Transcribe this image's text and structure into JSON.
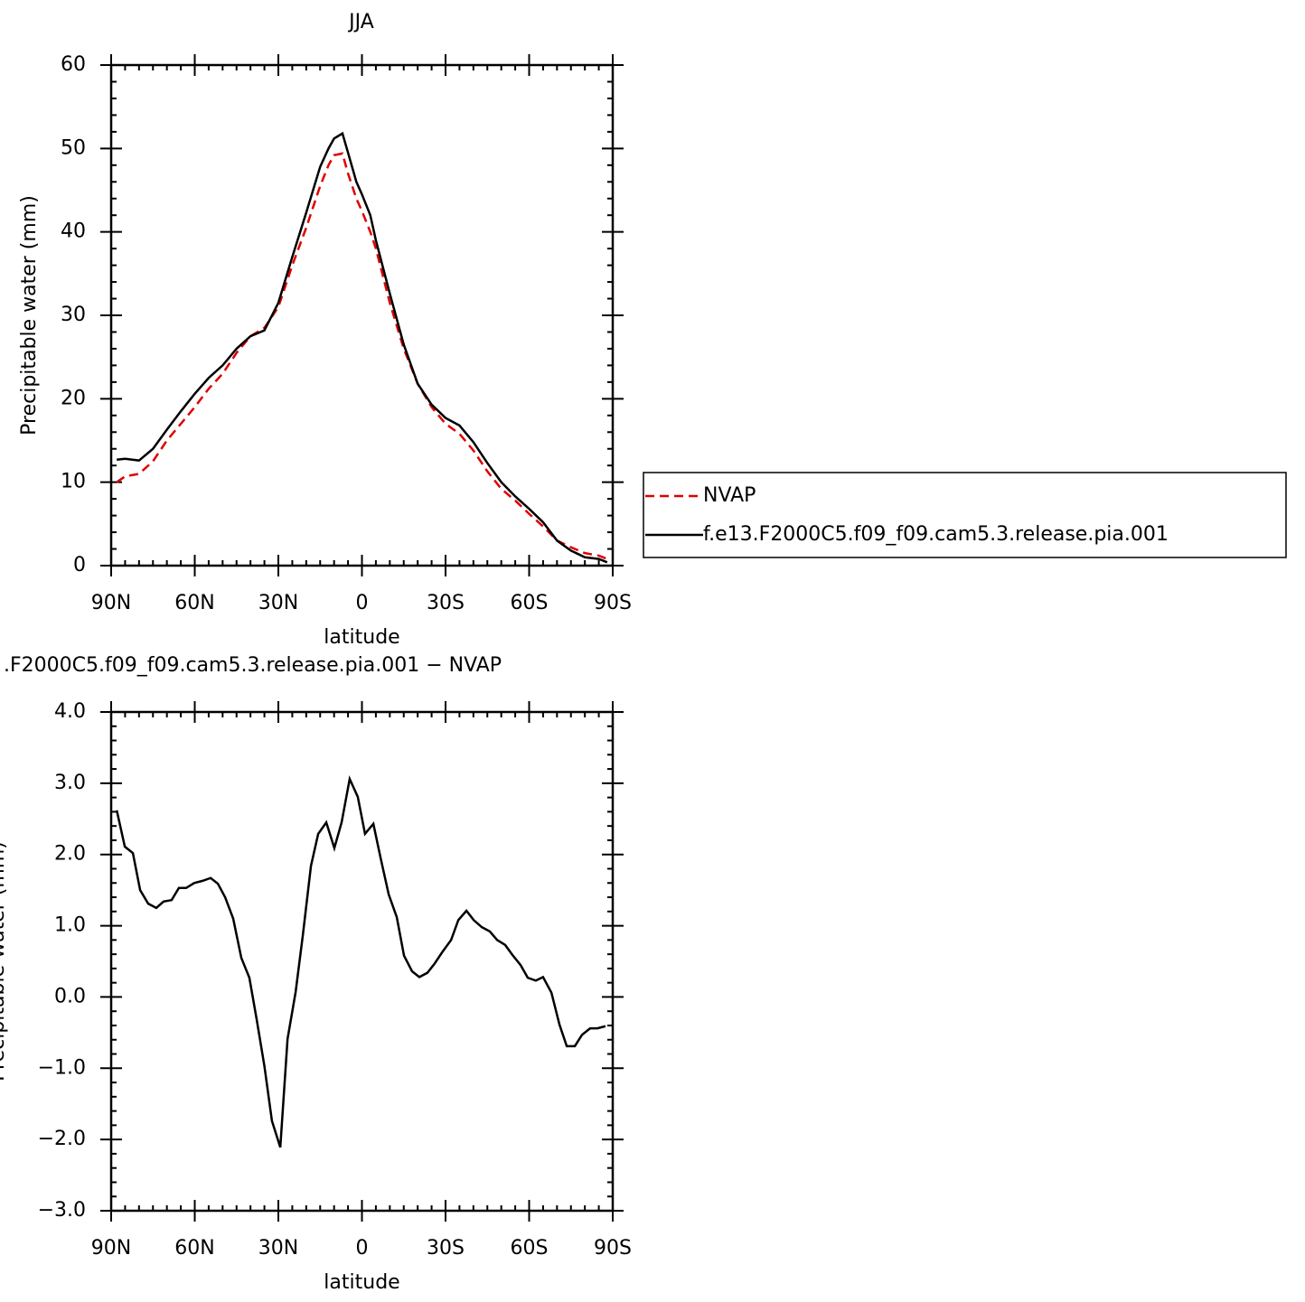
{
  "chart_data": [
    {
      "type": "line",
      "title": "JJA",
      "xlabel": "latitude",
      "ylabel": "Precipitable water (mm)",
      "x": [
        88,
        85,
        80,
        75,
        70,
        65,
        60,
        55,
        50,
        45,
        40,
        35,
        30,
        25,
        20,
        15,
        12,
        10,
        7,
        5,
        2,
        0,
        -3,
        -5,
        -10,
        -15,
        -20,
        -25,
        -30,
        -35,
        -40,
        -45,
        -50,
        -55,
        -60,
        -65,
        -70,
        -75,
        -80,
        -85,
        -88
      ],
      "series": [
        {
          "name": "NVAP",
          "color": "#e00000",
          "dash": "dashed",
          "values": [
            10,
            10.7,
            11,
            12.5,
            15,
            17,
            19,
            21.2,
            23,
            25.5,
            27.5,
            28.5,
            31,
            36,
            40.5,
            45.5,
            48,
            49.2,
            49.4,
            47,
            44,
            42.5,
            40,
            38,
            31.5,
            26,
            21.8,
            19,
            17,
            15.8,
            13.8,
            11.3,
            9.2,
            7.8,
            6.2,
            4.7,
            3,
            2.2,
            1.5,
            1.2,
            0.8
          ]
        },
        {
          "name": "f.e13.F2000C5.f09_f09.cam5.3.release.pia.001",
          "color": "#000000",
          "dash": "solid",
          "values": [
            12.7,
            12.8,
            12.6,
            14,
            16.3,
            18.5,
            20.6,
            22.5,
            24,
            26,
            27.5,
            28.2,
            31.5,
            37,
            42.3,
            47.8,
            50,
            51.2,
            51.8,
            49.5,
            46,
            44.5,
            42,
            39,
            32.6,
            26.5,
            21.8,
            19.3,
            17.7,
            16.8,
            14.8,
            12.3,
            10,
            8.3,
            6.8,
            5.2,
            3.0,
            1.8,
            1.0,
            0.8,
            0.4
          ]
        }
      ],
      "xlim": [
        90,
        -90
      ],
      "xticks": [
        {
          "value": 90,
          "label": "90N"
        },
        {
          "value": 60,
          "label": "60N"
        },
        {
          "value": 30,
          "label": "30N"
        },
        0,
        {
          "value": -30,
          "label": "30S"
        },
        {
          "value": -60,
          "label": "60S"
        },
        {
          "value": -90,
          "label": "90S"
        }
      ],
      "ylim": [
        0,
        60
      ],
      "yticks": [
        0,
        10,
        20,
        30,
        40,
        50,
        60
      ],
      "legend": "outside-right"
    },
    {
      "type": "line",
      "title": ".F2000C5.f09_f09.cam5.3.release.pia.001  −  NVAP",
      "xlabel": "latitude",
      "ylabel": "Precipitable water (mm)",
      "x": [
        88,
        85.1,
        82.2,
        79.6,
        76.7,
        73.8,
        71.2,
        68.3,
        65.7,
        63.1,
        60.2,
        57.2,
        54.3,
        51.7,
        49.1,
        46.2,
        43.3,
        40.4,
        37.8,
        35,
        32.3,
        29.3,
        26.7,
        23.8,
        21.2,
        18.3,
        15.7,
        12.8,
        9.9,
        7.3,
        4.4,
        1.5,
        -1.1,
        -4.1,
        -6.7,
        -9.6,
        -12.5,
        -15.1,
        -18,
        -20.6,
        -23.5,
        -26.1,
        -29,
        -32,
        -34.6,
        -37.5,
        -40.1,
        -43,
        -45.9,
        -48.5,
        -51.4,
        -54,
        -56.9,
        -59.5,
        -62.4,
        -65,
        -68,
        -70.9,
        -73.5,
        -76.4,
        -79,
        -81.9,
        -84.5,
        -87.4
      ],
      "series": [
        {
          "color": "#000000",
          "dash": "solid",
          "values": [
            2.62,
            2.11,
            2.02,
            1.5,
            1.31,
            1.25,
            1.34,
            1.36,
            1.53,
            1.53,
            1.6,
            1.63,
            1.67,
            1.59,
            1.4,
            1.1,
            0.55,
            0.27,
            -0.31,
            -0.97,
            -1.74,
            -2.11,
            -0.59,
            0.07,
            0.87,
            1.84,
            2.29,
            2.45,
            2.09,
            2.45,
            3.06,
            2.81,
            2.29,
            2.43,
            1.95,
            1.44,
            1.12,
            0.58,
            0.36,
            0.28,
            0.34,
            0.47,
            0.64,
            0.8,
            1.08,
            1.21,
            1.08,
            0.98,
            0.92,
            0.8,
            0.73,
            0.59,
            0.45,
            0.27,
            0.23,
            0.28,
            0.06,
            -0.39,
            -0.69,
            -0.69,
            -0.53,
            -0.44,
            -0.44,
            -0.41
          ]
        }
      ],
      "xlim": [
        90,
        -90
      ],
      "xticks": [
        {
          "value": 90,
          "label": "90N"
        },
        {
          "value": 60,
          "label": "60N"
        },
        {
          "value": 30,
          "label": "30N"
        },
        0,
        {
          "value": -30,
          "label": "30S"
        },
        {
          "value": -60,
          "label": "60S"
        },
        {
          "value": -90,
          "label": "90S"
        }
      ],
      "ylim": [
        -3,
        4
      ],
      "yticks": [
        {
          "value": -3,
          "label": "−3.0"
        },
        {
          "value": -2,
          "label": "−2.0"
        },
        {
          "value": -1,
          "label": "−1.0"
        },
        {
          "value": 0,
          "label": "0.0"
        },
        {
          "value": 1,
          "label": "1.0"
        },
        {
          "value": 2,
          "label": "2.0"
        },
        {
          "value": 3,
          "label": "3.0"
        },
        {
          "value": 4,
          "label": "4.0"
        }
      ]
    }
  ]
}
